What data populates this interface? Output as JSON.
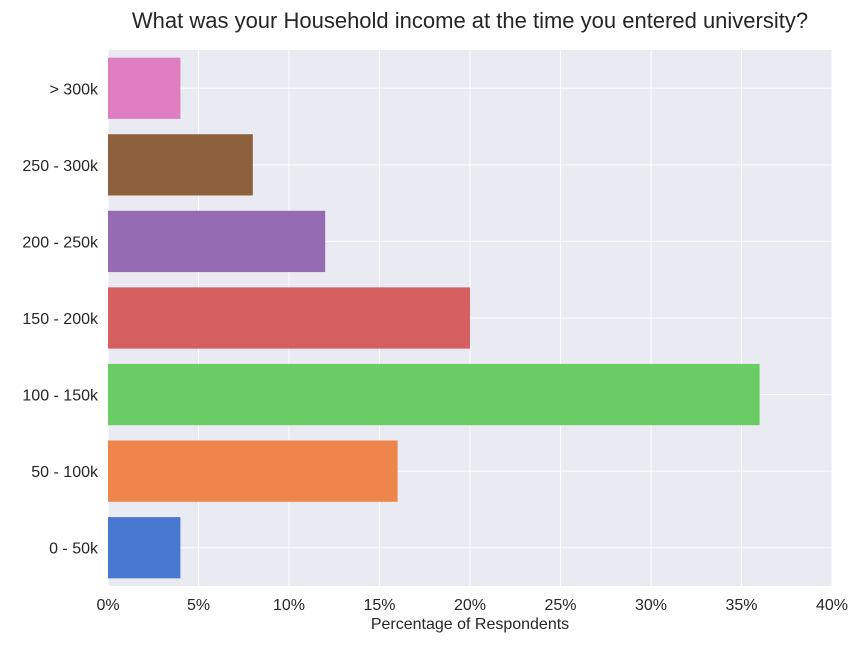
{
  "chart_data": {
    "type": "bar",
    "orientation": "horizontal",
    "title": "What was your Household income at the time you entered university?",
    "xlabel": "Percentage of Respondents",
    "ylabel": "",
    "categories": [
      "0 - 50k",
      "50 - 100k",
      "100 - 150k",
      "150 - 200k",
      "200 - 250k",
      "250 - 300k",
      "> 300k"
    ],
    "values": [
      4,
      16,
      36,
      20,
      12,
      8,
      4
    ],
    "colors": [
      "#4878d0",
      "#ee854a",
      "#6acc64",
      "#d65f5f",
      "#956cb4",
      "#8c613c",
      "#dc7ec0"
    ],
    "xlim": [
      0,
      40
    ],
    "xticks": [
      0,
      5,
      10,
      15,
      20,
      25,
      30,
      35,
      40
    ],
    "xtick_labels": [
      "0%",
      "5%",
      "10%",
      "15%",
      "20%",
      "25%",
      "30%",
      "35%",
      "40%"
    ],
    "grid": true,
    "background": "#eaeaf2",
    "legend": "none"
  }
}
